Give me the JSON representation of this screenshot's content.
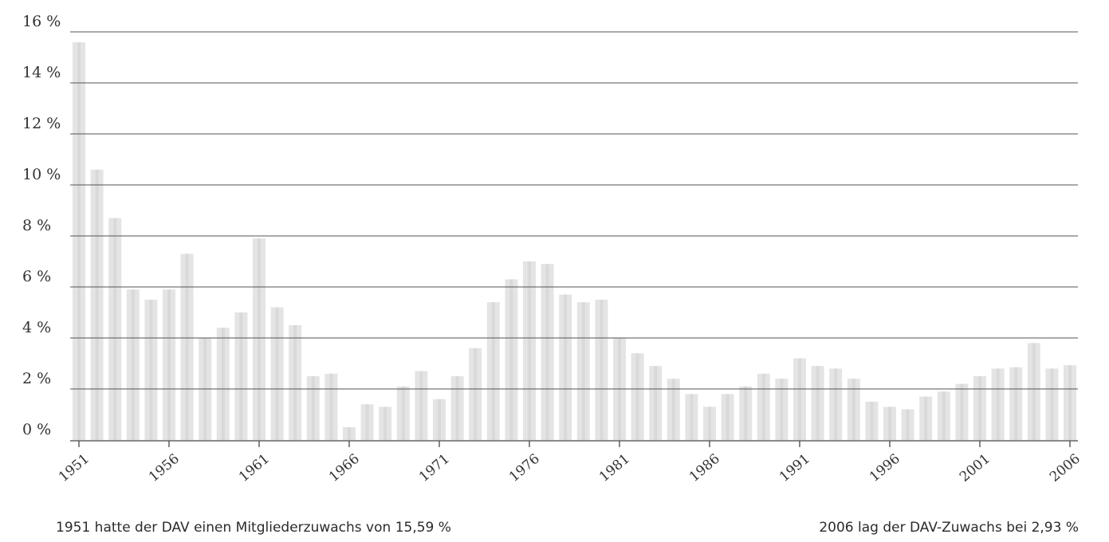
{
  "chart_data": {
    "type": "bar",
    "title": "",
    "xlabel": "",
    "ylabel": "",
    "y_unit": "%",
    "ylim": [
      0,
      16
    ],
    "yticks": [
      0,
      2,
      4,
      6,
      8,
      10,
      12,
      14,
      16
    ],
    "ytick_labels": [
      "0 %",
      "2 %",
      "4 %",
      "6 %",
      "8 %",
      "10 %",
      "12 %",
      "14 %",
      "16 %"
    ],
    "xticks": [
      1951,
      1956,
      1961,
      1966,
      1971,
      1976,
      1981,
      1986,
      1991,
      1996,
      2001,
      2006
    ],
    "grid": true,
    "bar_color": "#e4e4e4",
    "bar_stripe_color": "#d9d9d9",
    "years": [
      1951,
      1952,
      1953,
      1954,
      1955,
      1956,
      1957,
      1958,
      1959,
      1960,
      1961,
      1962,
      1963,
      1964,
      1965,
      1966,
      1967,
      1968,
      1969,
      1970,
      1971,
      1972,
      1973,
      1974,
      1975,
      1976,
      1977,
      1978,
      1979,
      1980,
      1981,
      1982,
      1983,
      1984,
      1985,
      1986,
      1987,
      1988,
      1989,
      1990,
      1991,
      1992,
      1993,
      1994,
      1995,
      1996,
      1997,
      1998,
      1999,
      2000,
      2001,
      2002,
      2003,
      2004,
      2005,
      2006
    ],
    "values": [
      15.59,
      10.6,
      8.7,
      5.9,
      5.5,
      5.9,
      7.3,
      4.0,
      4.4,
      5.0,
      7.9,
      5.2,
      4.5,
      2.5,
      2.6,
      0.5,
      1.4,
      1.3,
      2.1,
      2.7,
      1.6,
      2.5,
      3.6,
      5.4,
      6.3,
      7.0,
      6.9,
      5.7,
      5.4,
      5.5,
      4.0,
      3.4,
      2.9,
      2.4,
      1.8,
      1.3,
      1.8,
      2.1,
      2.6,
      2.4,
      3.2,
      2.9,
      2.8,
      2.4,
      1.5,
      1.3,
      1.2,
      1.7,
      1.9,
      2.2,
      2.5,
      2.8,
      2.85,
      3.8,
      2.8,
      2.93
    ]
  },
  "annotations": {
    "left": "1951 hatte der DAV einen Mitgliederzuwachs von 15,59 %",
    "right": "2006 lag der DAV-Zuwachs bei 2,93 %"
  }
}
